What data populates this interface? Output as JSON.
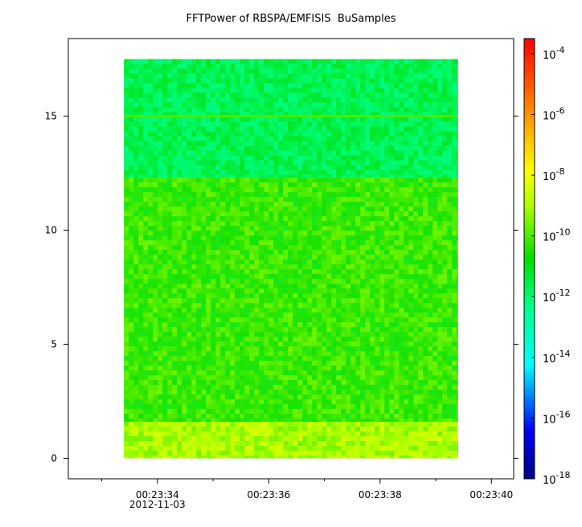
{
  "chart_data": {
    "type": "heatmap",
    "title": "FFTPower of RBSPA/EMFISIS  BuSamples",
    "xlabel": "",
    "ylabel": "",
    "x_ticks": [
      {
        "value": 34,
        "label": "00:23:34",
        "sublabel": "2012-11-03"
      },
      {
        "value": 36,
        "label": "00:23:36",
        "sublabel": ""
      },
      {
        "value": 38,
        "label": "00:23:38",
        "sublabel": ""
      },
      {
        "value": 40,
        "label": "00:23:40",
        "sublabel": ""
      }
    ],
    "x_minor_ticks": [
      33,
      35,
      37,
      39
    ],
    "xlim": [
      32.4,
      40.4
    ],
    "ylim": [
      -0.9,
      18.4
    ],
    "y_ticks": [
      {
        "value": 0,
        "label": "0"
      },
      {
        "value": 5,
        "label": "5"
      },
      {
        "value": 10,
        "label": "10"
      },
      {
        "value": 15,
        "label": "15"
      }
    ],
    "data_extent": {
      "x": [
        33.4,
        39.4
      ],
      "y": [
        0.0,
        17.5
      ]
    },
    "colorbar": {
      "scale": "log",
      "range_exp": [
        -18,
        -3.5
      ],
      "ticks": [
        {
          "base": "10",
          "exp": "-4",
          "value_exp": -4
        },
        {
          "base": "10",
          "exp": "-6",
          "value_exp": -6
        },
        {
          "base": "10",
          "exp": "-8",
          "value_exp": -8
        },
        {
          "base": "10",
          "exp": "-10",
          "value_exp": -10
        },
        {
          "base": "10",
          "exp": "-12",
          "value_exp": -12
        },
        {
          "base": "10",
          "exp": "-14",
          "value_exp": -14
        },
        {
          "base": "10",
          "exp": "-16",
          "value_exp": -16
        },
        {
          "base": "10",
          "exp": "-18",
          "value_exp": -18
        }
      ]
    },
    "bands": [
      {
        "y": [
          0.0,
          1.6
        ],
        "level_exp": -9.0
      },
      {
        "y": [
          1.6,
          12.3
        ],
        "level_exp": -10.2
      },
      {
        "y": [
          12.3,
          17.5
        ],
        "level_exp": -11.7
      }
    ],
    "line_features": [
      {
        "y": 15.0,
        "level_exp": -10.0
      }
    ],
    "colors": {
      "frame": "#000000",
      "background": "#ffffff"
    }
  }
}
